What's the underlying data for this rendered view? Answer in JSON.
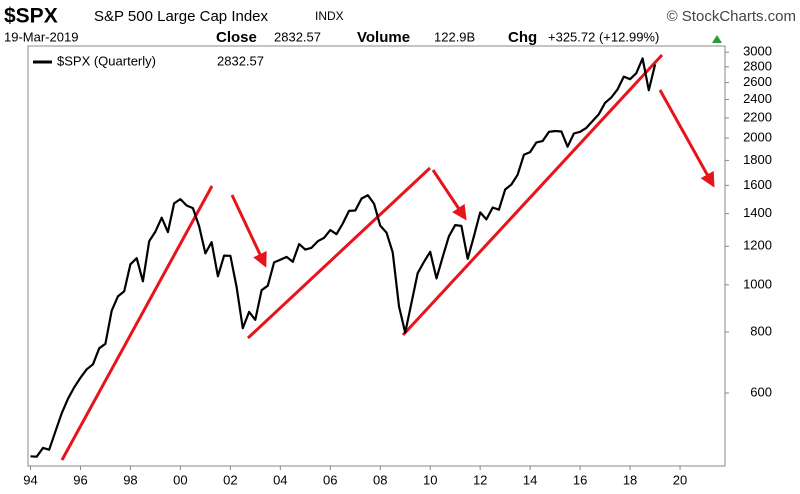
{
  "header": {
    "symbol": "$SPX",
    "name": "S&P 500 Large Cap Index",
    "exchange": "INDX",
    "source": "© StockCharts.com",
    "date": "19-Mar-2019",
    "close_label": "Close",
    "volume_label": "Volume",
    "volume": "122.9B",
    "chg_label": "Chg",
    "chg": "+325.72 (+12.99%)"
  },
  "chart_data": {
    "type": "line",
    "log_scale": true,
    "grid": false,
    "legend": "upper left",
    "x": [
      1994,
      1994.25,
      1994.5,
      1994.75,
      1995,
      1995.25,
      1995.5,
      1995.75,
      1996,
      1996.25,
      1996.5,
      1996.75,
      1997,
      1997.25,
      1997.5,
      1997.75,
      1998,
      1998.25,
      1998.5,
      1998.75,
      1999,
      1999.25,
      1999.5,
      1999.75,
      2000,
      2000.25,
      2000.5,
      2000.75,
      2001,
      2001.25,
      2001.5,
      2001.75,
      2002,
      2002.25,
      2002.5,
      2002.75,
      2003,
      2003.25,
      2003.5,
      2003.75,
      2004,
      2004.25,
      2004.5,
      2004.75,
      2005,
      2005.25,
      2005.5,
      2005.75,
      2006,
      2006.25,
      2006.5,
      2006.75,
      2007,
      2007.25,
      2007.5,
      2007.75,
      2008,
      2008.25,
      2008.5,
      2008.75,
      2009,
      2009.25,
      2009.5,
      2009.75,
      2010,
      2010.25,
      2010.5,
      2010.75,
      2011,
      2011.25,
      2011.5,
      2011.75,
      2012,
      2012.25,
      2012.5,
      2012.75,
      2013,
      2013.25,
      2013.5,
      2013.75,
      2014,
      2014.25,
      2014.5,
      2014.75,
      2015,
      2015.25,
      2015.5,
      2015.75,
      2016,
      2016.25,
      2016.5,
      2016.75,
      2017,
      2017.25,
      2017.5,
      2017.75,
      2018,
      2018.25,
      2018.5,
      2018.75,
      2019
    ],
    "series": [
      {
        "name": "$SPX (Quarterly)",
        "color": "#000000",
        "values": [
          445,
          444,
          463,
          459,
          501,
          545,
          584,
          616,
          645,
          671,
          687,
          741,
          757,
          885,
          947,
          970,
          1102,
          1134,
          1017,
          1229,
          1286,
          1373,
          1283,
          1469,
          1499,
          1455,
          1437,
          1320,
          1160,
          1224,
          1041,
          1148,
          1147,
          990,
          815,
          880,
          848,
          975,
          996,
          1112,
          1126,
          1141,
          1115,
          1212,
          1181,
          1191,
          1229,
          1248,
          1295,
          1270,
          1336,
          1418,
          1421,
          1503,
          1527,
          1468,
          1323,
          1280,
          1166,
          903,
          798,
          919,
          1057,
          1115,
          1169,
          1031,
          1141,
          1258,
          1326,
          1321,
          1131,
          1258,
          1408,
          1362,
          1441,
          1426,
          1569,
          1606,
          1682,
          1848,
          1872,
          1960,
          1972,
          2059,
          2068,
          2063,
          1920,
          2044,
          2060,
          2099,
          2168,
          2239,
          2363,
          2423,
          2519,
          2674,
          2641,
          2718,
          2914,
          2507,
          2832.57
        ]
      }
    ],
    "xlim": [
      1993.9,
      2021.8
    ],
    "xticks": [
      {
        "value": 1994,
        "label": "94"
      },
      {
        "value": 1996,
        "label": "96"
      },
      {
        "value": 1998,
        "label": "98"
      },
      {
        "value": 2000,
        "label": "00"
      },
      {
        "value": 2002,
        "label": "02"
      },
      {
        "value": 2004,
        "label": "04"
      },
      {
        "value": 2006,
        "label": "06"
      },
      {
        "value": 2008,
        "label": "08"
      },
      {
        "value": 2010,
        "label": "10"
      },
      {
        "value": 2012,
        "label": "12"
      },
      {
        "value": 2014,
        "label": "14"
      },
      {
        "value": 2016,
        "label": "16"
      },
      {
        "value": 2018,
        "label": "18"
      },
      {
        "value": 2020,
        "label": "20"
      }
    ],
    "ylim": [
      425,
      3090
    ],
    "yticks": [
      600,
      800,
      1000,
      1200,
      1400,
      1600,
      1800,
      2000,
      2200,
      2400,
      2600,
      2800,
      3000
    ]
  }
}
